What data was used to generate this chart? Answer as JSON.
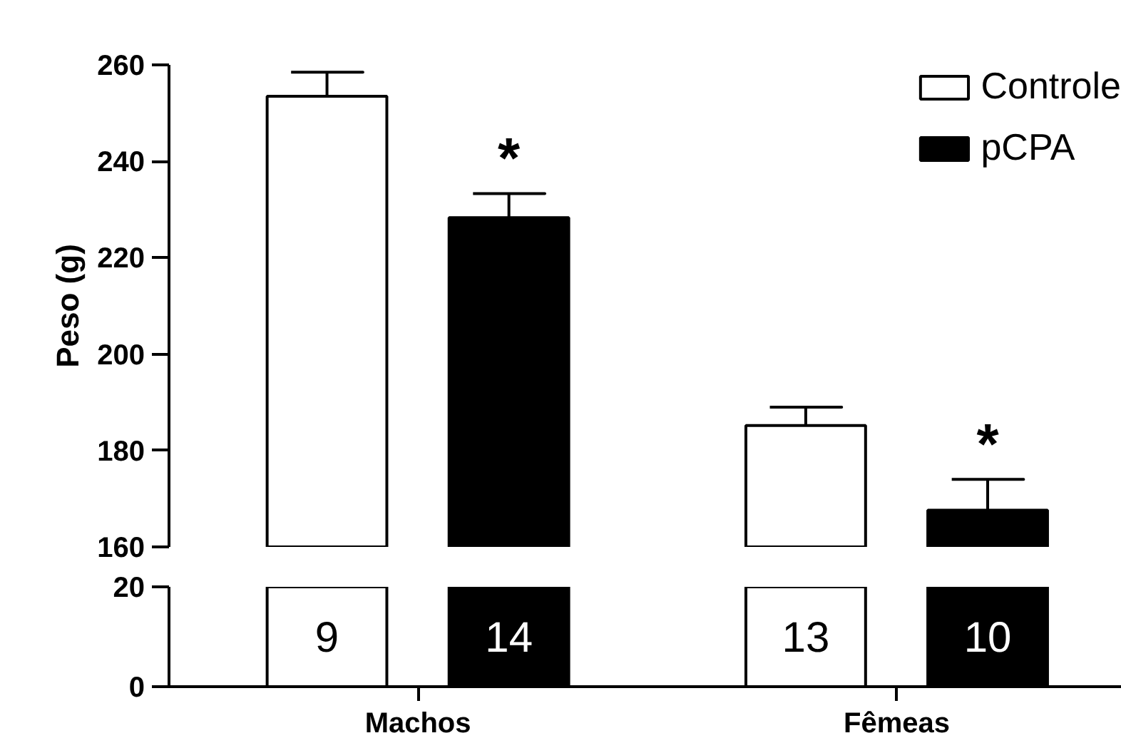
{
  "chart_data": [
    {
      "type": "bar",
      "ylabel": "Peso (g)",
      "categories": [
        null,
        null
      ],
      "series": [
        {
          "name": "Controle",
          "color": "#ffffff",
          "values": [
            253.5,
            185.2
          ],
          "errors": [
            [
              253.5,
              258.5
            ],
            [
              185.2,
              189
            ]
          ]
        },
        {
          "name": "pCPA",
          "color": "#000000",
          "values": [
            228.3,
            167.6
          ],
          "errors": [
            [
              228.3,
              233.3
            ],
            [
              167.6,
              174
            ]
          ]
        }
      ],
      "ylim": [
        160,
        260
      ],
      "yticks": [
        160,
        180,
        200,
        220,
        240,
        260
      ],
      "tick_labels": "y",
      "legend": "top right",
      "grid": false,
      "annotations": [
        "*",
        "*"
      ]
    },
    {
      "type": "bar",
      "categories": [
        "Machos",
        "Fêmeas"
      ],
      "ylim": [
        0,
        20
      ],
      "yticks": [
        0,
        20
      ],
      "grid": false,
      "annotations": [
        "9",
        "14",
        "13",
        "10"
      ]
    }
  ]
}
